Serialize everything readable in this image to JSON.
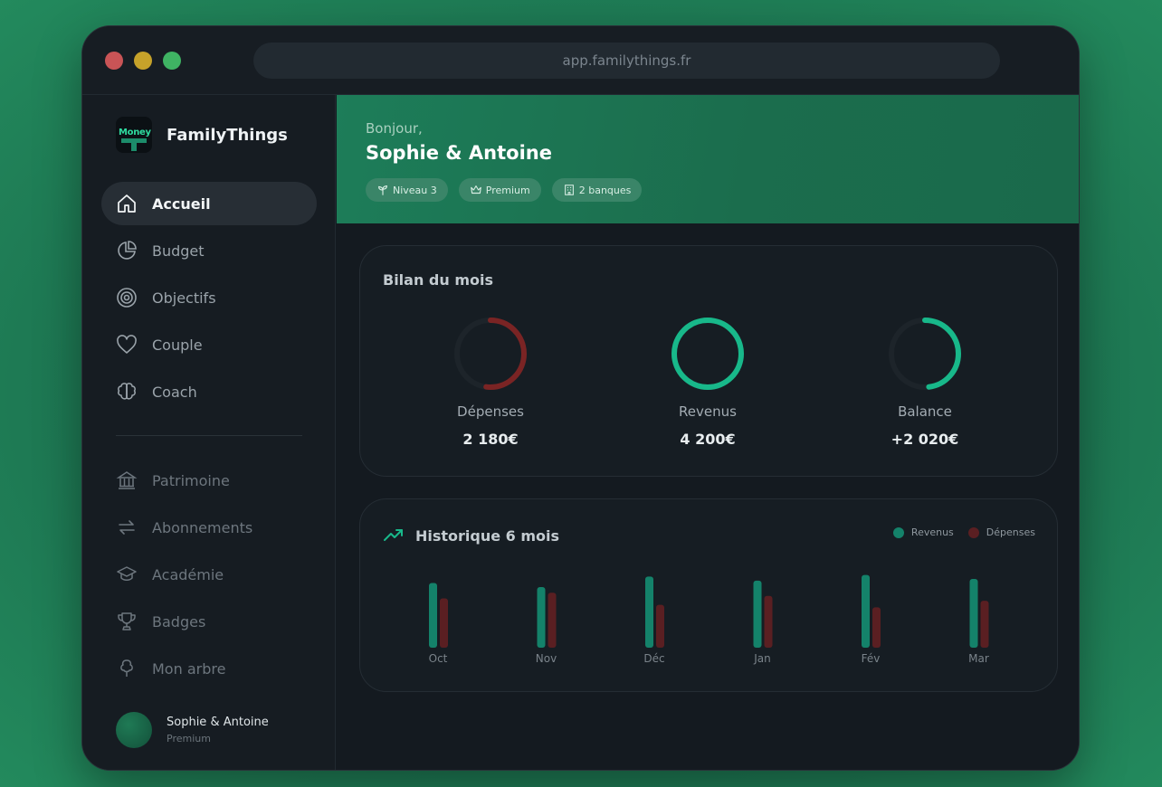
{
  "browser": {
    "url": "app.familythings.fr"
  },
  "brand": {
    "name": "FamilyThings",
    "logo_text": "Money"
  },
  "nav": {
    "primary": [
      {
        "label": "Accueil",
        "icon": "home-icon",
        "active": true
      },
      {
        "label": "Budget",
        "icon": "pie-chart-icon"
      },
      {
        "label": "Objectifs",
        "icon": "target-icon"
      },
      {
        "label": "Couple",
        "icon": "heart-icon"
      },
      {
        "label": "Coach",
        "icon": "brain-icon"
      }
    ],
    "secondary": [
      {
        "label": "Patrimoine",
        "icon": "bank-icon"
      },
      {
        "label": "Abonnements",
        "icon": "repeat-icon"
      },
      {
        "label": "Académie",
        "icon": "graduation-cap-icon"
      },
      {
        "label": "Badges",
        "icon": "trophy-icon"
      },
      {
        "label": "Mon arbre",
        "icon": "tree-icon"
      }
    ]
  },
  "user": {
    "name": "Sophie & Antoine",
    "plan": "Premium"
  },
  "hero": {
    "greeting": "Bonjour,",
    "name": "Sophie & Antoine",
    "pills": [
      {
        "label": "Niveau 3",
        "icon": "sprout-icon"
      },
      {
        "label": "Premium",
        "icon": "crown-icon"
      },
      {
        "label": "2 banques",
        "icon": "building-icon"
      }
    ]
  },
  "summary": {
    "title": "Bilan du mois",
    "items": [
      {
        "label": "Dépenses",
        "value": "2 180€",
        "fraction": 0.52,
        "color": "#7a2424"
      },
      {
        "label": "Revenus",
        "value": "4 200€",
        "fraction": 1.0,
        "color": "#18b88a"
      },
      {
        "label": "Balance",
        "value": "+2 020€",
        "fraction": 0.48,
        "color": "#18b88a"
      }
    ]
  },
  "history": {
    "title": "Historique 6 mois",
    "legend": {
      "income": "Revenus",
      "expense": "Dépenses"
    }
  },
  "colors": {
    "income": "#14826a",
    "expense": "#5a1f22",
    "accent": "#1d7d59"
  },
  "chart_data": {
    "type": "bar",
    "categories": [
      "Oct",
      "Nov",
      "Déc",
      "Jan",
      "Fév",
      "Mar"
    ],
    "series": [
      {
        "name": "Revenus",
        "values": [
          4000,
          3750,
          4400,
          4150,
          4500,
          4250
        ]
      },
      {
        "name": "Dépenses",
        "values": [
          3050,
          3400,
          2650,
          3200,
          2500,
          2900
        ]
      }
    ],
    "title": "Historique 6 mois",
    "legend": "top-right",
    "grid": false
  }
}
